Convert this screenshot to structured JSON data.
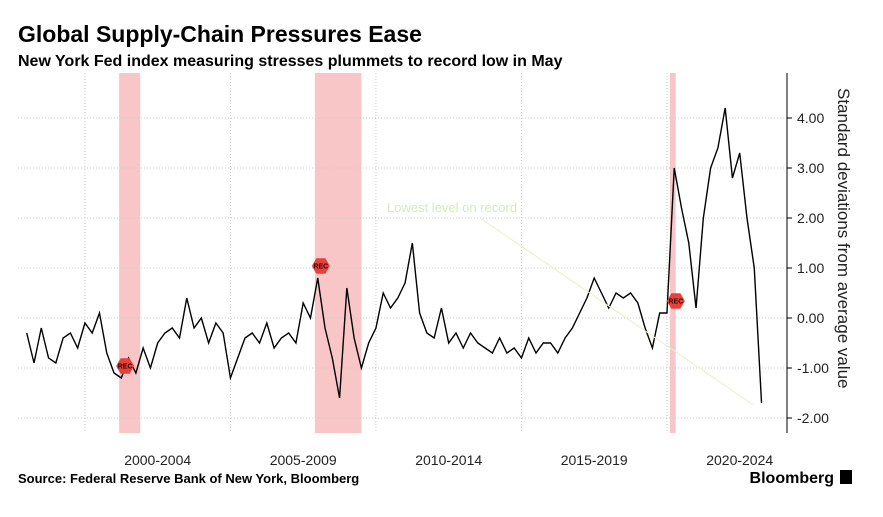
{
  "chart_data": {
    "type": "line",
    "title": "Global Supply-Chain Pressures Ease",
    "subtitle": "New York Fed index measuring stresses plummets to record low in May",
    "y_label": "Standard deviations from average value",
    "annotation": "Lowest level on record",
    "recession_label": "REC",
    "source": "Source: Federal Reserve Bank of New York, Bloomberg",
    "brand": "Bloomberg",
    "color": "#000000",
    "recession_color": "#f6b3b3",
    "recessions": [
      {
        "start": 12.7,
        "end": 15.6
      },
      {
        "start": 39.6,
        "end": 46
      },
      {
        "start": 88.4,
        "end": 89.2
      }
    ],
    "values": [
      -0.3,
      -0.9,
      -0.2,
      -0.8,
      -0.9,
      -0.4,
      -0.3,
      -0.6,
      -0.1,
      -0.3,
      0.1,
      -0.7,
      -1.1,
      -1.2,
      -0.8,
      -1.1,
      -0.6,
      -1.0,
      -0.5,
      -0.3,
      -0.2,
      -0.4,
      0.4,
      -0.2,
      0.0,
      -0.5,
      -0.1,
      -0.3,
      -1.2,
      -0.8,
      -0.4,
      -0.3,
      -0.5,
      -0.1,
      -0.6,
      -0.4,
      -0.3,
      -0.5,
      0.3,
      0.0,
      0.8,
      -0.2,
      -0.8,
      -1.6,
      0.6,
      -0.4,
      -1.0,
      -0.5,
      -0.2,
      0.5,
      0.2,
      0.4,
      0.7,
      1.5,
      0.1,
      -0.3,
      -0.4,
      0.2,
      -0.5,
      -0.3,
      -0.6,
      -0.3,
      -0.5,
      -0.6,
      -0.7,
      -0.4,
      -0.7,
      -0.6,
      -0.8,
      -0.4,
      -0.7,
      -0.5,
      -0.5,
      -0.7,
      -0.4,
      -0.2,
      0.1,
      0.4,
      0.8,
      0.5,
      0.2,
      0.5,
      0.4,
      0.5,
      0.3,
      -0.2,
      -0.6,
      0.1,
      0.1,
      3.0,
      2.2,
      1.5,
      0.2,
      2.0,
      3.0,
      3.4,
      4.2,
      2.8,
      3.3,
      2.0,
      1.0,
      -1.7
    ],
    "xlim": [
      -1.2,
      104.5
    ],
    "xticks": [
      {
        "value": 18,
        "label": "2000-2004"
      },
      {
        "value": 38,
        "label": "2005-2009"
      },
      {
        "value": 58,
        "label": "2010-2014"
      },
      {
        "value": 78,
        "label": "2015-2019"
      },
      {
        "value": 98,
        "label": "2020-2024"
      }
    ],
    "ylim": [
      -2.3,
      4.9
    ],
    "yticks": [
      {
        "value": 4,
        "label": "4.00"
      },
      {
        "value": 3,
        "label": "3.00"
      },
      {
        "value": 2,
        "label": "2.00"
      },
      {
        "value": 1,
        "label": "1.00"
      },
      {
        "value": 0,
        "label": "0.00"
      },
      {
        "value": -1,
        "label": "-1.00"
      },
      {
        "value": -2,
        "label": "-2.00"
      }
    ],
    "grid": true
  }
}
